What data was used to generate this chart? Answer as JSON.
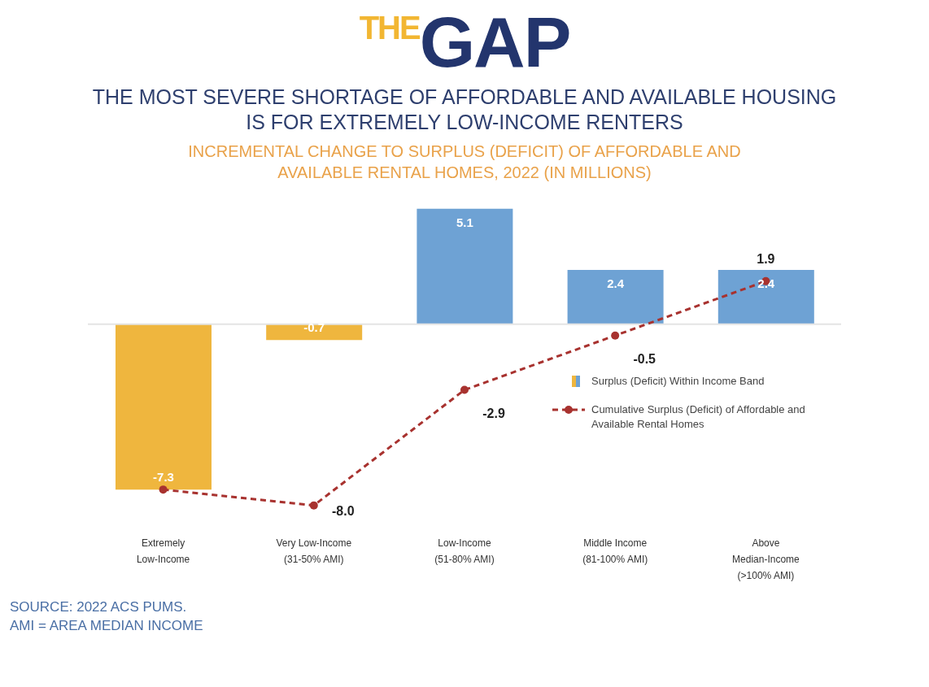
{
  "chart_data": {
    "type": "bar",
    "title": "$^{THE}$GAP",
    "subtitle": "THE MOST SEVERE SHORTAGE OF AFFORDABLE AND AVAILABLE HOUSING IS FOR EXTREMELY LOW-INCOME RENTERS",
    "annotations": [
      "INCREMENTAL CHANGE TO SURPLUS (DEFICIT) OF AFFORDABLE AND AVAILABLE RENTAL HOMES, 2022 (IN MILLIONS)",
      "SOURCE: 2022 ACS PUMS.",
      "AMI = AREA MEDIAN INCOME"
    ],
    "categories": [
      "Extremely Low-Income",
      "Very Low-Income (31-50% AMI)",
      "Low-Income (51-80% AMI)",
      "Middle Income (81-100% AMI)",
      "Above Median-Income (>100% AMI)"
    ],
    "series": [
      {
        "name": "Surplus (Deficit) Within Income Band",
        "colors": [
          "#efb63e",
          "#efb63e",
          "#6ea2d4",
          "#6ea2d4",
          "#6ea2d4"
        ],
        "values": [
          -7.3,
          -0.7,
          5.1,
          2.4,
          2.4
        ],
        "value_labels": [
          "-7.3",
          "-0.7",
          "5.1",
          "2.4",
          "2.4"
        ]
      },
      {
        "name": "Cumulative Surplus (Deficit) of Affordable and Available Rental Homes",
        "type": "line",
        "color": "#a8322f",
        "values": [
          -7.3,
          -8.0,
          -2.9,
          -0.5,
          1.9
        ],
        "value_labels": [
          null,
          "-8.0",
          "-2.9",
          "-0.5",
          "1.9"
        ],
        "marker": "circle",
        "line_style": "dashed"
      }
    ],
    "tick_labels": "x",
    "ref_lines": [
      {
        "axis": "y",
        "value": 0,
        "color": "#e4e4e4"
      }
    ],
    "legend": "right"
  }
}
